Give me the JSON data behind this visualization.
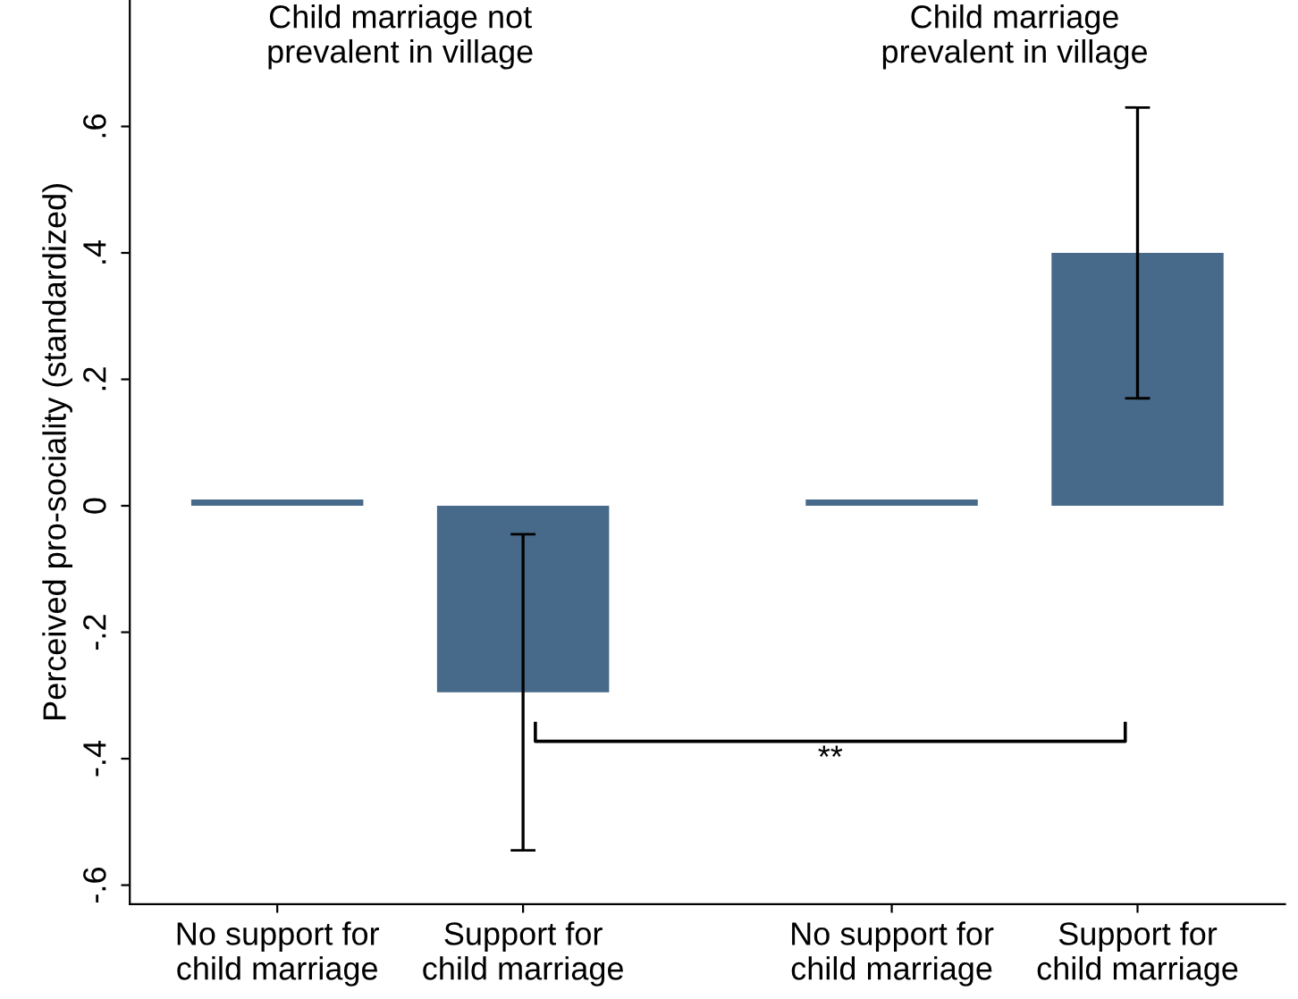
{
  "chart_data": {
    "type": "bar",
    "ylabel": "Perceived pro-sociality (standardized)",
    "categories": [
      "No support for\nchild marriage",
      "Support for\nchild marriage",
      "No support for\nchild marriage",
      "Support for\nchild marriage"
    ],
    "values": [
      0.01,
      -0.295,
      0.01,
      0.4
    ],
    "errors": [
      null,
      [
        -0.545,
        -0.045
      ],
      null,
      [
        0.17,
        0.63
      ]
    ],
    "color": "#476a8a",
    "ylim": [
      -0.63,
      0.8
    ],
    "yticks": [
      {
        "value": -0.6,
        "label": "-.6"
      },
      {
        "value": -0.4,
        "label": "-.4"
      },
      {
        "value": -0.2,
        "label": "-.2"
      },
      0,
      {
        "value": 0.2,
        "label": ".2"
      },
      {
        "value": 0.4,
        "label": ".4"
      },
      {
        "value": 0.6,
        "label": ".6"
      }
    ],
    "grid": false,
    "annotations": [
      "Child marriage not\nprevalent in village",
      "Child marriage\nprevalent in village",
      "**"
    ]
  }
}
